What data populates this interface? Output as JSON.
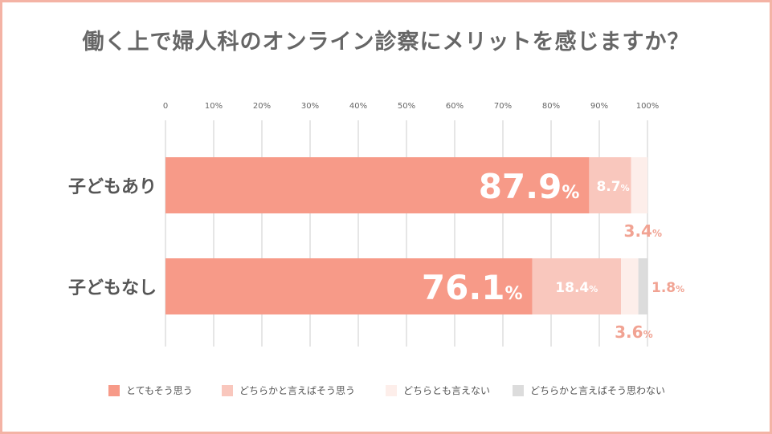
{
  "title": "働く上で婦人科のオンライン診察にメリットを感じますか？",
  "colors": {
    "border": "#f4b3a5",
    "axis_text": "#666666",
    "grid": "#cccccc",
    "category_text": "#555555",
    "outside_label": "#f1a393"
  },
  "chart_data": {
    "type": "bar",
    "orientation": "horizontal",
    "stacked": true,
    "title": "働く上で婦人科のオンライン診察にメリットを感じますか？",
    "xlim": [
      0,
      100
    ],
    "x_ticks": [
      "0",
      "10%",
      "20%",
      "30%",
      "40%",
      "50%",
      "60%",
      "70%",
      "80%",
      "90%",
      "100%"
    ],
    "categories": [
      "子どもあり",
      "子どもなし"
    ],
    "series": [
      {
        "name": "とてもそう思う",
        "color": "#f79a88",
        "values": [
          87.9,
          76.1
        ]
      },
      {
        "name": "どちらかと言えばそう思う",
        "color": "#f9c7bd",
        "values": [
          8.7,
          18.4
        ]
      },
      {
        "name": "どちらとも言えない",
        "color": "#fdeeea",
        "values": [
          3.4,
          3.6
        ]
      },
      {
        "name": "どちらかと言えばそう思わない",
        "color": "#dcdcdc",
        "values": [
          0,
          1.8
        ]
      }
    ],
    "value_labels": [
      [
        {
          "number": "87.9",
          "unit": "%"
        },
        {
          "number": "8.7",
          "unit": "%"
        },
        {
          "number": "3.4",
          "unit": "%"
        },
        null
      ],
      [
        {
          "number": "76.1",
          "unit": "%"
        },
        {
          "number": "18.4",
          "unit": "%"
        },
        {
          "number": "3.6",
          "unit": "%"
        },
        {
          "number": "1.8",
          "unit": "%"
        }
      ]
    ],
    "legend_position": "bottom",
    "grid": true
  }
}
